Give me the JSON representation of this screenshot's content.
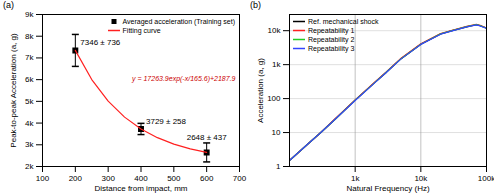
{
  "chart_data": [
    {
      "type": "scatter",
      "title": "(a)",
      "xlabel": "Distance from impact, mm",
      "ylabel": "Peak-to-peak Acceleration (a, g)",
      "x": [
        200,
        400,
        600
      ],
      "series": [
        {
          "name": "Averaged acceleration (Training set)",
          "color": "#000000",
          "marker": "square",
          "values": [
            7346,
            3729,
            2648
          ],
          "errors": [
            736,
            258,
            437
          ],
          "value_labels": [
            "7346 ± 736",
            "3729 ± 258",
            "2648 ± 437"
          ]
        },
        {
          "name": "Fitting curve",
          "color": "#ff2020",
          "type": "line",
          "line_style": "solid",
          "x": [
            200,
            250,
            300,
            350,
            400,
            450,
            500,
            550,
            600
          ],
          "values": [
            7347,
            6003,
            5009,
            4274,
            3730,
            3328,
            3031,
            2811,
            2649
          ]
        }
      ],
      "annotations": [
        "y = 17263.9exp(-x/165.6)+2187.9"
      ],
      "data_labels": true,
      "legend": "upper right",
      "grid": false,
      "xlim": [
        100,
        700
      ],
      "xticks": [
        100,
        200,
        300,
        400,
        500,
        600,
        700
      ],
      "ylim": [
        2000,
        9000
      ],
      "yticks": [
        {
          "value": 2000,
          "label": "2k"
        },
        {
          "value": 3000,
          "label": "3k"
        },
        {
          "value": 4000,
          "label": "4k"
        },
        {
          "value": 5000,
          "label": "5k"
        },
        {
          "value": 6000,
          "label": "6k"
        },
        {
          "value": 7000,
          "label": "7k"
        },
        {
          "value": 8000,
          "label": "8k"
        },
        {
          "value": 9000,
          "label": "9k"
        }
      ]
    },
    {
      "type": "line",
      "title": "(b)",
      "xlabel": "Natural Frequency (Hz)",
      "ylabel": "Acceleration (a, g)",
      "x": [
        100,
        200,
        300,
        500,
        1000,
        2000,
        3000,
        5000,
        10000,
        20000,
        30000,
        50000,
        70000,
        80000,
        100000
      ],
      "series": [
        {
          "name": "Ref. mechanical shock",
          "color": "#000000",
          "values": [
            1.5,
            5,
            10,
            25,
            90,
            300,
            600,
            1500,
            4000,
            8000,
            10000,
            13000,
            15000,
            14000,
            12000
          ]
        },
        {
          "name": "Repeatability 1",
          "color": "#ff2020",
          "values": [
            1.5,
            5,
            10,
            26,
            92,
            310,
            620,
            1550,
            4100,
            8200,
            10300,
            13500,
            15500,
            14500,
            12000
          ]
        },
        {
          "name": "Repeatability 2",
          "color": "#22cc22",
          "values": [
            1.5,
            5,
            10,
            25,
            90,
            300,
            610,
            1500,
            4000,
            8100,
            10100,
            13200,
            15200,
            14200,
            11800
          ]
        },
        {
          "name": "Repeatability 3",
          "color": "#3344ff",
          "values": [
            1.5,
            5,
            10,
            25,
            88,
            295,
            600,
            1480,
            3950,
            7900,
            9900,
            12900,
            14800,
            13800,
            11700
          ]
        }
      ],
      "log": true,
      "grid": true,
      "legend": "upper left",
      "xlim": [
        100,
        100000
      ],
      "xticks": [
        {
          "value": 1000,
          "label": "1k"
        },
        {
          "value": 10000,
          "label": "10k"
        },
        {
          "value": 100000,
          "label": "100k"
        }
      ],
      "ylim": [
        1,
        30000
      ],
      "yticks": [
        1,
        10,
        100,
        {
          "value": 1000,
          "label": "1k"
        },
        {
          "value": 10000,
          "label": "10k"
        }
      ]
    }
  ]
}
